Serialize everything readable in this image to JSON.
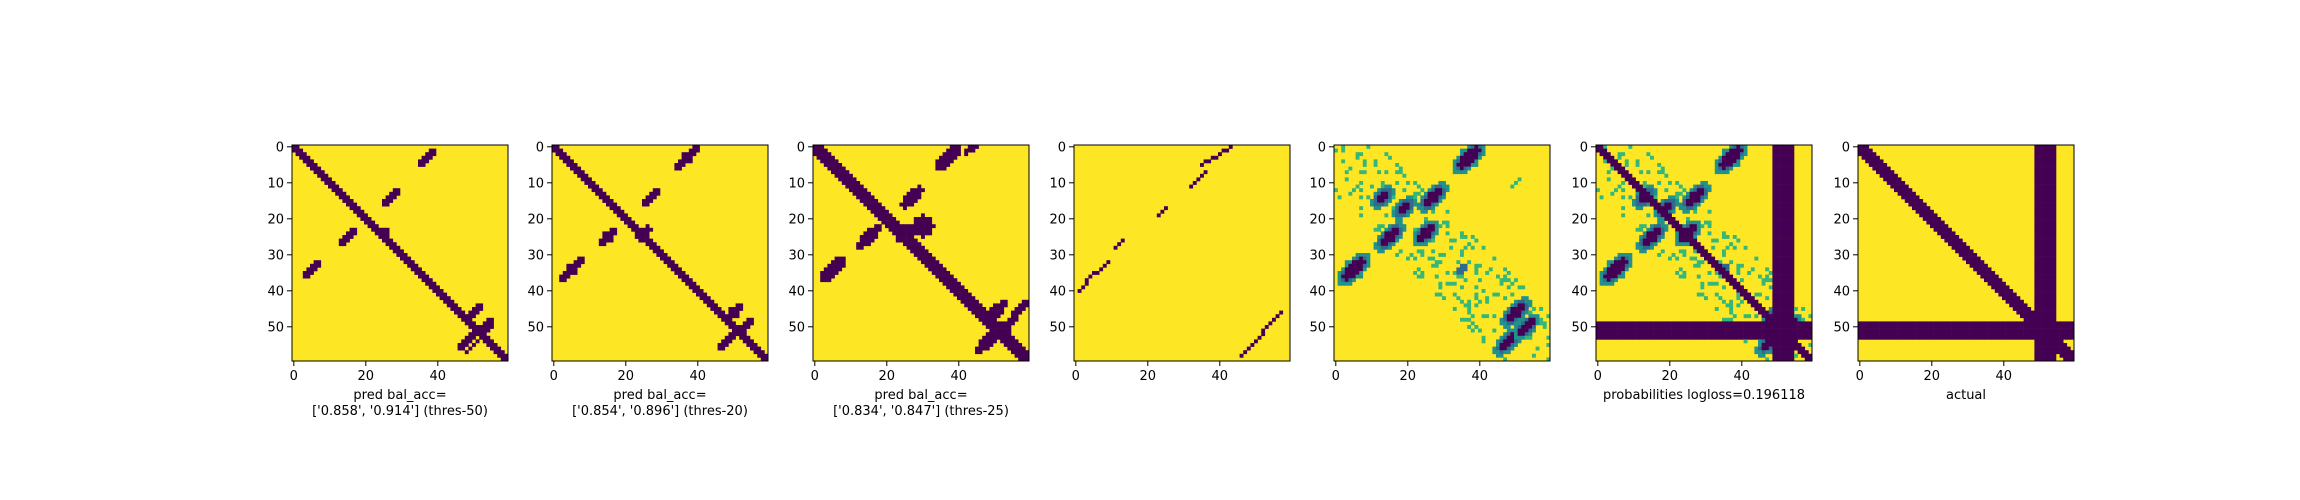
{
  "chart_data": [
    {
      "type": "heatmap",
      "panel": "pred-thres-50",
      "xlabel_lines": [
        "pred bal_acc=",
        "['0.858', '0.914'] (thres-50)"
      ],
      "xticks": [
        0,
        20,
        40
      ],
      "yticks": [
        0,
        10,
        20,
        30,
        40,
        50
      ],
      "xlim": [
        0,
        60
      ],
      "ylim": [
        60,
        0
      ],
      "values": "binary"
    },
    {
      "type": "heatmap",
      "panel": "pred-thres-20",
      "xlabel_lines": [
        "pred bal_acc=",
        "['0.854', '0.896'] (thres-20)"
      ],
      "xticks": [
        0,
        20,
        40
      ],
      "yticks": [
        0,
        10,
        20,
        30,
        40,
        50
      ],
      "xlim": [
        0,
        60
      ],
      "ylim": [
        60,
        0
      ],
      "values": "binary"
    },
    {
      "type": "heatmap",
      "panel": "pred-thres-25",
      "xlabel_lines": [
        "pred bal_acc=",
        "['0.834', '0.847'] (thres-25)"
      ],
      "xticks": [
        0,
        20,
        40
      ],
      "yticks": [
        0,
        10,
        20,
        30,
        40,
        50
      ],
      "xlim": [
        0,
        60
      ],
      "ylim": [
        60,
        0
      ],
      "values": "binary"
    },
    {
      "type": "heatmap",
      "panel": "sparse-diagonal",
      "xlabel_lines": [],
      "xticks": [
        0,
        20,
        40
      ],
      "yticks": [
        0,
        10,
        20,
        30,
        40,
        50
      ],
      "xlim": [
        0,
        60
      ],
      "ylim": [
        60,
        0
      ],
      "values": "binary"
    },
    {
      "type": "heatmap",
      "panel": "probabilities-no-label",
      "xlabel_lines": [],
      "xticks": [
        0,
        20,
        40
      ],
      "yticks": [
        0,
        10,
        20,
        30,
        40,
        50
      ],
      "xlim": [
        0,
        60
      ],
      "ylim": [
        60,
        0
      ],
      "values": "continuous"
    },
    {
      "type": "heatmap",
      "panel": "probabilities-logloss",
      "xlabel_lines": [
        "probabilities logloss=0.196118"
      ],
      "xticks": [
        0,
        20,
        40
      ],
      "yticks": [
        0,
        10,
        20,
        30,
        40,
        50
      ],
      "xlim": [
        0,
        60
      ],
      "ylim": [
        60,
        0
      ],
      "values": "continuous"
    },
    {
      "type": "heatmap",
      "panel": "actual",
      "xlabel_lines": [
        "actual"
      ],
      "xticks": [
        0,
        20,
        40
      ],
      "yticks": [
        0,
        10,
        20,
        30,
        40,
        50
      ],
      "xlim": [
        0,
        60
      ],
      "ylim": [
        60,
        0
      ],
      "values": "binary"
    }
  ],
  "colors": {
    "low": "#440154",
    "mid_blue": "#31688e",
    "mid_teal": "#21918c",
    "mid_green": "#35b779",
    "light_green": "#90d743",
    "high": "#fde725",
    "axis": "#000000"
  }
}
